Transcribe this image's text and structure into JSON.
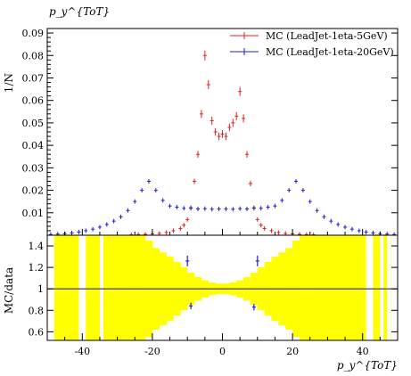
{
  "chart_data": [
    {
      "type": "scatter",
      "title": "",
      "corner_label": "p_y^{ToT}",
      "ylabel": "1/N",
      "xlim": [
        -50,
        50
      ],
      "ylim": [
        0,
        0.092
      ],
      "y_ticks": [
        {
          "value": 0.01,
          "label": "0.01"
        },
        {
          "value": 0.02,
          "label": "0.02"
        },
        {
          "value": 0.03,
          "label": "0.03"
        },
        {
          "value": 0.04,
          "label": "0.04"
        },
        {
          "value": 0.05,
          "label": "0.05"
        },
        {
          "value": 0.06,
          "label": "0.06"
        },
        {
          "value": 0.07,
          "label": "0.07"
        },
        {
          "value": 0.08,
          "label": "0.08"
        },
        {
          "value": 0.09,
          "label": "0.09"
        }
      ],
      "legend_position": "top-right",
      "series": [
        {
          "name": "MC (LeadJet-1eta-5GeV)",
          "color": "#e02020",
          "x": [
            -26,
            -24,
            -22,
            -20,
            -18,
            -16,
            -14,
            -12,
            -11,
            -10,
            -9,
            -8,
            -7,
            -6,
            -5,
            -4,
            -3,
            -2,
            -1,
            0,
            1,
            2,
            3,
            4,
            5,
            6,
            7,
            8,
            9,
            10,
            11,
            12,
            14,
            16,
            18,
            20,
            22,
            24,
            26
          ],
          "y": [
            0.0002,
            0.0003,
            0.0004,
            0.0006,
            0.0008,
            0.0012,
            0.002,
            0.003,
            0.0045,
            0.007,
            0.012,
            0.024,
            0.036,
            0.054,
            0.08,
            0.067,
            0.051,
            0.046,
            0.044,
            0.045,
            0.044,
            0.048,
            0.05,
            0.053,
            0.064,
            0.052,
            0.036,
            0.023,
            0.012,
            0.007,
            0.0045,
            0.003,
            0.002,
            0.0012,
            0.0008,
            0.0006,
            0.0004,
            0.0003,
            0.0002
          ],
          "yerr": [
            0.0001,
            0.0001,
            0.0001,
            0.0001,
            0.0001,
            0.0002,
            0.0003,
            0.0004,
            0.0005,
            0.0006,
            0.0008,
            0.0012,
            0.0015,
            0.0018,
            0.0022,
            0.002,
            0.0018,
            0.0017,
            0.0017,
            0.0017,
            0.0017,
            0.0017,
            0.0018,
            0.0018,
            0.002,
            0.0018,
            0.0015,
            0.0012,
            0.0008,
            0.0006,
            0.0005,
            0.0004,
            0.0003,
            0.0002,
            0.0001,
            0.0001,
            0.0001,
            0.0001,
            0.0001
          ]
        },
        {
          "name": "MC (LeadJet-1eta-20GeV)",
          "color": "#2020d0",
          "x": [
            -49,
            -47,
            -45,
            -43,
            -41,
            -39,
            -37,
            -35,
            -33,
            -31,
            -29,
            -27,
            -25,
            -23,
            -21,
            -19,
            -17,
            -15,
            -13,
            -11,
            -9,
            -7,
            -5,
            -3,
            -1,
            1,
            3,
            5,
            7,
            9,
            11,
            13,
            15,
            17,
            19,
            21,
            23,
            25,
            27,
            29,
            31,
            33,
            35,
            37,
            39,
            41,
            43,
            45,
            47,
            49
          ],
          "y": [
            0.0003,
            0.0005,
            0.0007,
            0.001,
            0.0014,
            0.002,
            0.0027,
            0.0036,
            0.0048,
            0.0063,
            0.0082,
            0.011,
            0.015,
            0.02,
            0.024,
            0.02,
            0.0155,
            0.013,
            0.0125,
            0.012,
            0.0122,
            0.0117,
            0.0118,
            0.0116,
            0.0117,
            0.0117,
            0.0116,
            0.0118,
            0.0117,
            0.0122,
            0.012,
            0.0125,
            0.013,
            0.0155,
            0.02,
            0.024,
            0.02,
            0.015,
            0.011,
            0.0082,
            0.0063,
            0.0048,
            0.0036,
            0.0027,
            0.002,
            0.0014,
            0.001,
            0.0007,
            0.0005,
            0.0003
          ],
          "yerr": [
            0.0002,
            0.0002,
            0.0002,
            0.0002,
            0.0002,
            0.0003,
            0.0003,
            0.0003,
            0.0004,
            0.0004,
            0.0004,
            0.0005,
            0.0006,
            0.0007,
            0.0008,
            0.0007,
            0.0006,
            0.0006,
            0.0005,
            0.0005,
            0.0005,
            0.0005,
            0.0005,
            0.0005,
            0.0005,
            0.0005,
            0.0005,
            0.0005,
            0.0005,
            0.0005,
            0.0005,
            0.0005,
            0.0006,
            0.0006,
            0.0007,
            0.0008,
            0.0007,
            0.0006,
            0.0005,
            0.0004,
            0.0004,
            0.0004,
            0.0003,
            0.0003,
            0.0003,
            0.0002,
            0.0002,
            0.0002,
            0.0002,
            0.0002
          ]
        }
      ]
    },
    {
      "type": "scatter",
      "title": "",
      "ylabel": "MC/data",
      "xlabel": "p_y^{ToT}",
      "xlim": [
        -50,
        50
      ],
      "ylim": [
        0.52,
        1.5
      ],
      "y_ticks": [
        {
          "value": 0.6,
          "label": "0.6"
        },
        {
          "value": 0.8,
          "label": "0.8"
        },
        {
          "value": 1.0,
          "label": "1"
        },
        {
          "value": 1.2,
          "label": "1.2"
        },
        {
          "value": 1.4,
          "label": "1.4"
        }
      ],
      "x_ticks": [
        {
          "value": -40,
          "label": "-40"
        },
        {
          "value": -20,
          "label": "-20"
        },
        {
          "value": 0,
          "label": "0"
        },
        {
          "value": 20,
          "label": "20"
        },
        {
          "value": 40,
          "label": "40"
        }
      ],
      "reference_line": 1,
      "band_color": "#ffff00",
      "uncertainty_band": {
        "x_edges": [
          -48,
          -46,
          -44,
          -42,
          -40,
          -38,
          -36,
          -34,
          -32,
          -30,
          -28,
          -26,
          -24,
          -22,
          -20,
          -18,
          -16,
          -14,
          -12,
          -10,
          -8,
          -6,
          -4,
          -2,
          0,
          2,
          4,
          6,
          8,
          10,
          12,
          14,
          16,
          18,
          20,
          22,
          24,
          26,
          28,
          30,
          32,
          34,
          36,
          38,
          40,
          42,
          44,
          46,
          48
        ],
        "half_width": [
          0.6,
          0.6,
          0.6,
          0.6,
          0.6,
          0.6,
          0.6,
          0.6,
          0.6,
          0.6,
          0.6,
          0.6,
          0.55,
          0.45,
          0.38,
          0.34,
          0.3,
          0.25,
          0.2,
          0.15,
          0.11,
          0.08,
          0.06,
          0.05,
          0.05,
          0.06,
          0.08,
          0.11,
          0.15,
          0.2,
          0.25,
          0.3,
          0.34,
          0.38,
          0.45,
          0.55,
          0.6,
          0.6,
          0.6,
          0.6,
          0.6,
          0.6,
          0.6,
          0.6,
          0.6,
          0.6,
          0.6,
          0.6
        ],
        "gaps": [
          [
            -41,
            -39
          ],
          [
            -35,
            -34
          ],
          [
            41,
            43
          ],
          [
            45,
            46
          ],
          [
            47,
            48
          ]
        ]
      },
      "series": [
        {
          "name": "",
          "color": "#2020d0",
          "x": [
            -10,
            -9,
            9,
            10
          ],
          "y": [
            1.26,
            0.84,
            0.83,
            1.26
          ],
          "yerr": [
            0.05,
            0.03,
            0.03,
            0.05
          ]
        }
      ]
    }
  ]
}
